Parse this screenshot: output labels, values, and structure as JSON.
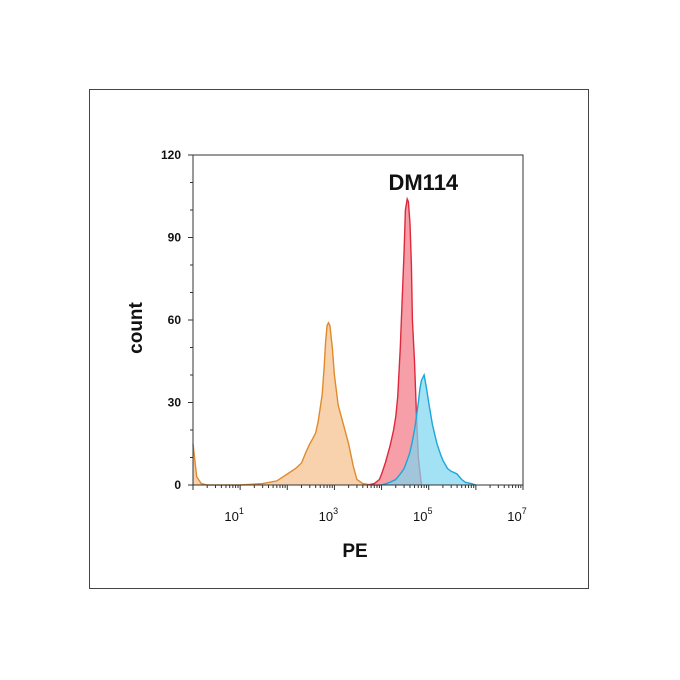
{
  "chart_data": {
    "type": "area",
    "annotation": "DM114",
    "xlabel": "PE",
    "ylabel": "count",
    "x_scale": "log",
    "xlim": [
      1,
      10000000
    ],
    "ylim": [
      0,
      120
    ],
    "y_ticks": [
      "0",
      "30",
      "60",
      "90",
      "120"
    ],
    "x_ticks": [
      {
        "base": "10",
        "exp": "1",
        "value": 10
      },
      {
        "base": "10",
        "exp": "3",
        "value": 1000
      },
      {
        "base": "10",
        "exp": "5",
        "value": 100000
      },
      {
        "base": "10",
        "exp": "7",
        "value": 10000000
      }
    ],
    "grid": false,
    "series": [
      {
        "color_fill": "#f5c18c",
        "color_line": "#e08a2c",
        "x": [
          1,
          1.2,
          1.5,
          2,
          5,
          10,
          30,
          60,
          100,
          150,
          200,
          250,
          300,
          350,
          400,
          450,
          500,
          550,
          600,
          650,
          700,
          750,
          800,
          900,
          1000,
          1200,
          1500,
          2000,
          2500,
          3000,
          4000,
          6000,
          8000,
          10000
        ],
        "y": [
          15,
          3,
          0.5,
          0,
          0,
          0,
          0.5,
          1.5,
          4,
          6,
          8,
          12,
          15,
          17,
          19,
          23,
          28,
          33,
          42,
          52,
          58,
          59,
          58,
          50,
          40,
          29,
          23,
          15,
          7,
          2,
          0.5,
          0,
          0,
          0
        ]
      },
      {
        "color_fill": "#f47a86",
        "color_line": "#e0283c",
        "x": [
          5000,
          7000,
          9000,
          10000,
          12000,
          15000,
          18000,
          20000,
          22000,
          25000,
          27000,
          30000,
          32000,
          35000,
          37000,
          40000,
          43000,
          45000,
          50000,
          55000,
          60000,
          70000
        ],
        "y": [
          0,
          0.5,
          2,
          4,
          8,
          14,
          20,
          25,
          32,
          50,
          65,
          85,
          100,
          104,
          103,
          95,
          80,
          60,
          45,
          25,
          10,
          0
        ]
      },
      {
        "color_fill": "#7fd6f0",
        "color_line": "#1aa8d8",
        "x": [
          10000,
          15000,
          20000,
          25000,
          30000,
          35000,
          40000,
          45000,
          50000,
          55000,
          60000,
          65000,
          70000,
          80000,
          90000,
          100000,
          120000,
          150000,
          180000,
          200000,
          250000,
          300000,
          400000,
          500000,
          600000,
          800000,
          1000000
        ],
        "y": [
          0,
          1,
          2,
          4,
          6,
          9,
          12,
          16,
          20,
          25,
          30,
          35,
          38,
          40,
          35,
          30,
          22,
          15,
          11,
          9,
          6,
          5,
          4,
          2,
          1,
          0.5,
          0
        ]
      }
    ]
  }
}
